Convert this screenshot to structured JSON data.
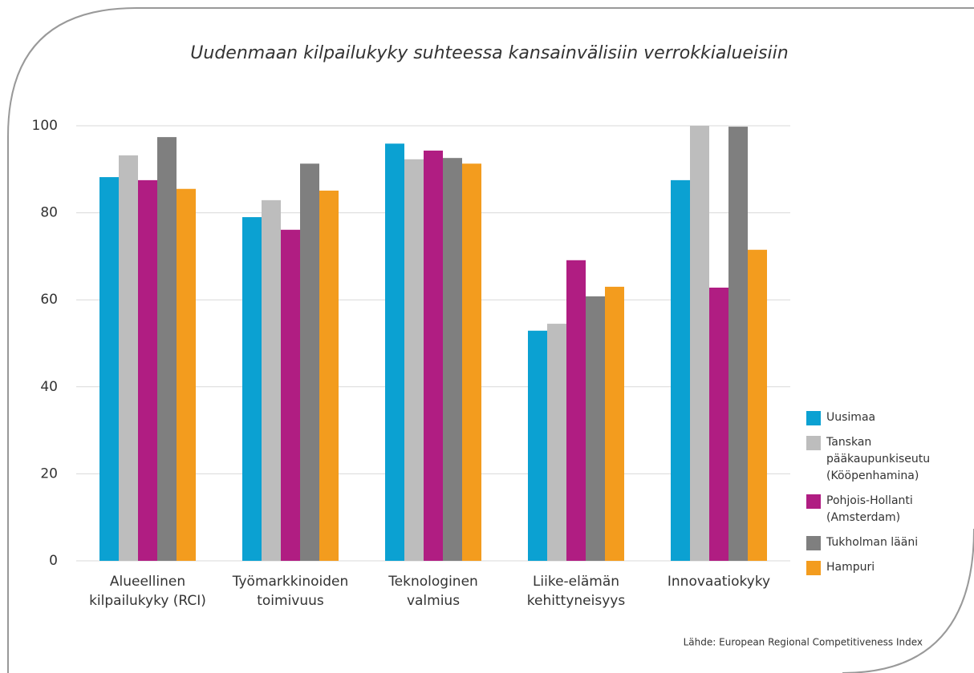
{
  "chart_data": {
    "type": "bar",
    "title": "Uudenmaan kilpailukyky suhteessa kansainvälisiin verrokkialueisiin",
    "source": "Lähde: European Regional Competitiveness Index",
    "categories": [
      "Alueellinen\nkilpailukyky (RCI)",
      "Työmarkkinoiden\ntoimivuus",
      "Teknologinen\nvalmius",
      "Liike-elämän\nkehittyneisyys",
      "Innovaatiokyky"
    ],
    "series": [
      {
        "name": "Uusimaa",
        "color": "#0ba1d2",
        "values": [
          88.2,
          79.0,
          95.9,
          52.9,
          87.5
        ]
      },
      {
        "name": "Tanskan\npääkaupunkiseutu\n(Kööpenhamina)",
        "color": "#bdbdbd",
        "values": [
          93.2,
          82.9,
          92.3,
          54.5,
          100
        ]
      },
      {
        "name": "Pohjois-Hollanti\n(Amsterdam)",
        "color": "#b01d82",
        "values": [
          87.5,
          76.1,
          94.3,
          69.1,
          62.8
        ]
      },
      {
        "name": "Tukholman lääni",
        "color": "#7f7f7f",
        "values": [
          97.4,
          91.3,
          92.6,
          60.8,
          99.8
        ]
      },
      {
        "name": "Hampuri",
        "color": "#f39c1e",
        "values": [
          85.5,
          85.1,
          91.3,
          63.0,
          71.5
        ]
      }
    ],
    "ylim": [
      0,
      100
    ],
    "yticks": [
      0,
      20,
      40,
      60,
      80,
      100
    ],
    "grid": true,
    "legend": "right"
  }
}
